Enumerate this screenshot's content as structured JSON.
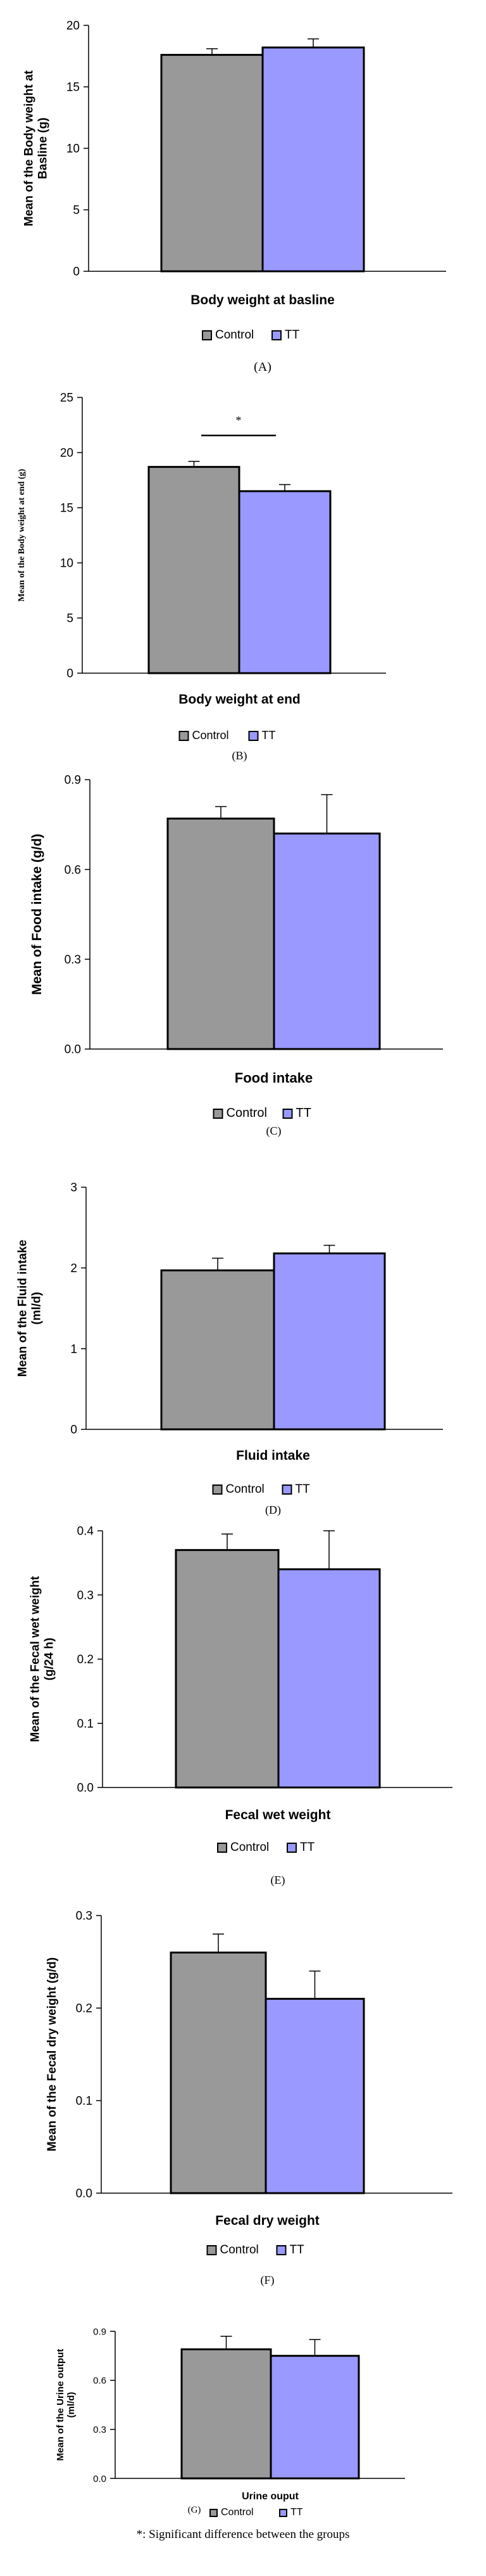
{
  "footnote": "*: Significant difference between the groups",
  "colors": {
    "control": "#999999",
    "tt": "#9999ff",
    "axis": "#000000",
    "bar_stroke": "#000000"
  },
  "chart_data": [
    {
      "type": "bar",
      "panel": "(A)",
      "ylabel": "Mean of the Body weight at Basline (g)",
      "xlabel": "Body weight at basline",
      "ylim": [
        0,
        20
      ],
      "yticks": [
        "0",
        "5",
        "10",
        "15",
        "20"
      ],
      "ytick_values": [
        0,
        5,
        10,
        15,
        20
      ],
      "series": [
        {
          "name": "Control",
          "values": [
            17.6
          ],
          "errors": [
            0.5
          ]
        },
        {
          "name": "TT",
          "values": [
            18.2
          ],
          "errors": [
            0.7
          ]
        }
      ],
      "legend": [
        "Control",
        "TT"
      ],
      "significance": ""
    },
    {
      "type": "bar",
      "panel": "(B)",
      "ylabel": "Mean of the Body weight at end (g)",
      "xlabel": "Body weight at end",
      "ylim": [
        0,
        25
      ],
      "yticks": [
        "0",
        "5",
        "10",
        "15",
        "20",
        "25"
      ],
      "ytick_values": [
        0,
        5,
        10,
        15,
        20,
        25
      ],
      "series": [
        {
          "name": "Control",
          "values": [
            18.7
          ],
          "errors": [
            0.5
          ]
        },
        {
          "name": "TT",
          "values": [
            16.5
          ],
          "errors": [
            0.6
          ]
        }
      ],
      "legend": [
        "Control",
        "TT"
      ],
      "significance": "*"
    },
    {
      "type": "bar",
      "panel": "(C)",
      "ylabel": "Mean of Food intake (g/d)",
      "xlabel": "Food intake",
      "ylim": [
        0,
        0.9
      ],
      "yticks": [
        "0.0",
        "0.3",
        "0.6",
        "0.9"
      ],
      "ytick_values": [
        0,
        0.3,
        0.6,
        0.9
      ],
      "series": [
        {
          "name": "Control",
          "values": [
            0.77
          ],
          "errors": [
            0.04
          ]
        },
        {
          "name": "TT",
          "values": [
            0.72
          ],
          "errors": [
            0.13
          ]
        }
      ],
      "legend": [
        "Control",
        "TT"
      ],
      "significance": ""
    },
    {
      "type": "bar",
      "panel": "(D)",
      "ylabel": "Mean of the Fluid intake (ml/d)",
      "xlabel": "Fluid intake",
      "ylim": [
        0,
        3
      ],
      "yticks": [
        "0",
        "1",
        "2",
        "3"
      ],
      "ytick_values": [
        0,
        1,
        2,
        3
      ],
      "series": [
        {
          "name": "Control",
          "values": [
            1.97
          ],
          "errors": [
            0.15
          ]
        },
        {
          "name": "TT",
          "values": [
            2.18
          ],
          "errors": [
            0.1
          ]
        }
      ],
      "legend": [
        "Control",
        "TT"
      ],
      "significance": ""
    },
    {
      "type": "bar",
      "panel": "(E)",
      "ylabel": "Mean of the Fecal wet weight (g/24 h)",
      "xlabel": "Fecal wet weight",
      "ylim": [
        0,
        0.4
      ],
      "yticks": [
        "0.0",
        "0.1",
        "0.2",
        "0.3",
        "0.4"
      ],
      "ytick_values": [
        0,
        0.1,
        0.2,
        0.3,
        0.4
      ],
      "series": [
        {
          "name": "Control",
          "values": [
            0.37
          ],
          "errors": [
            0.025
          ]
        },
        {
          "name": "TT",
          "values": [
            0.34
          ],
          "errors": [
            0.06
          ]
        }
      ],
      "legend": [
        "Control",
        "TT"
      ],
      "significance": ""
    },
    {
      "type": "bar",
      "panel": "(F)",
      "ylabel": "Mean of the Fecal dry weight (g/d)",
      "xlabel": "Fecal dry weight",
      "ylim": [
        0,
        0.3
      ],
      "yticks": [
        "0.0",
        "0.1",
        "0.2",
        "0.3"
      ],
      "ytick_values": [
        0,
        0.1,
        0.2,
        0.3
      ],
      "series": [
        {
          "name": "Control",
          "values": [
            0.26
          ],
          "errors": [
            0.02
          ]
        },
        {
          "name": "TT",
          "values": [
            0.21
          ],
          "errors": [
            0.03
          ]
        }
      ],
      "legend": [
        "Control",
        "TT"
      ],
      "significance": ""
    },
    {
      "type": "bar",
      "panel": "(G)",
      "ylabel": "Mean of the Urine output (ml/d)",
      "xlabel": "Urine ouput",
      "ylim": [
        0,
        0.9
      ],
      "yticks": [
        "0.0",
        "0.3",
        "0.6",
        "0.9"
      ],
      "ytick_values": [
        0,
        0.3,
        0.6,
        0.9
      ],
      "series": [
        {
          "name": "Control",
          "values": [
            0.79
          ],
          "errors": [
            0.08
          ]
        },
        {
          "name": "TT",
          "values": [
            0.75
          ],
          "errors": [
            0.1
          ]
        }
      ],
      "legend": [
        "Control",
        "TT"
      ],
      "significance": ""
    }
  ]
}
